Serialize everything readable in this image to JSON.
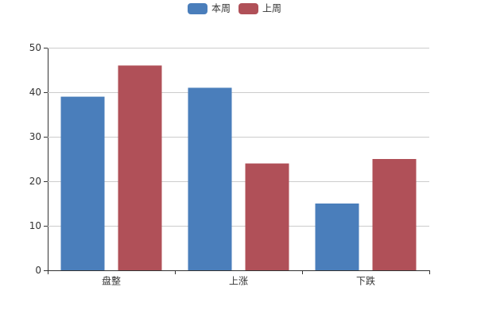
{
  "chart_data": {
    "type": "bar",
    "categories": [
      "盘整",
      "上涨",
      "下跌"
    ],
    "series": [
      {
        "name": "本周",
        "color": "#4a7ebb",
        "values": [
          39,
          41,
          15
        ]
      },
      {
        "name": "上周",
        "color": "#b05058",
        "values": [
          46,
          24,
          25
        ]
      }
    ],
    "ylim": [
      0,
      50
    ],
    "yticks": [
      0,
      10,
      20,
      30,
      40,
      50
    ],
    "grid": true,
    "legend": "top"
  }
}
